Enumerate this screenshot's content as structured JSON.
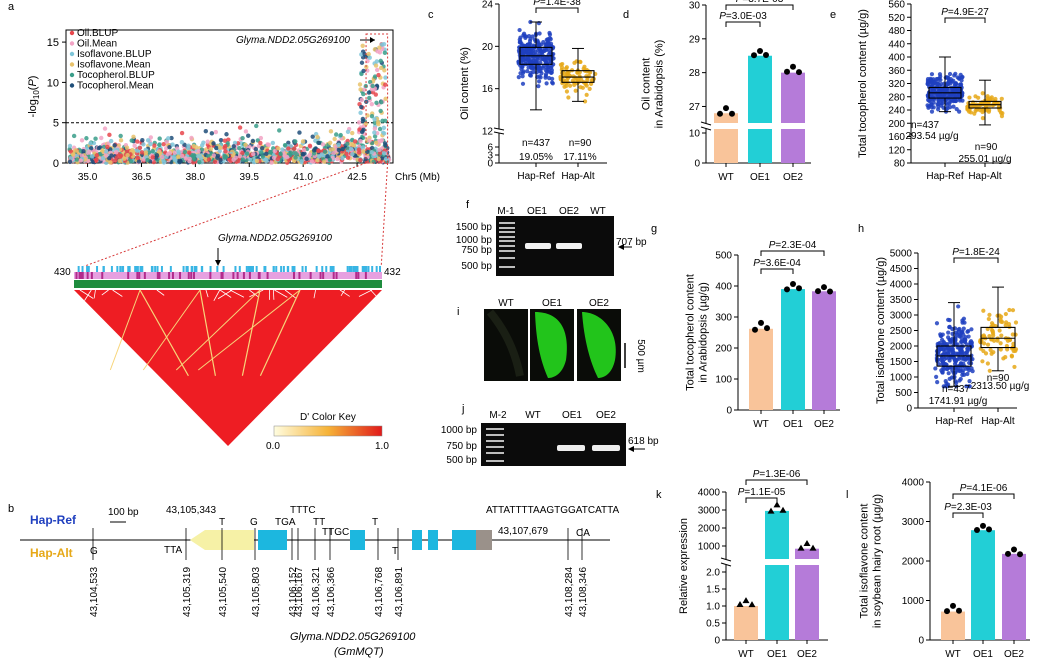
{
  "panel_letters": [
    "a",
    "b",
    "c",
    "d",
    "e",
    "f",
    "g",
    "h",
    "i",
    "j",
    "k",
    "l"
  ],
  "chart_data": [
    {
      "panel": "a",
      "type": "scatter",
      "ylabel": "-log10(P)",
      "xlabel": "Chr5 (Mb)",
      "xticks": [
        "35.0",
        "36.5",
        "38.0",
        "39.5",
        "41.0",
        "42.5"
      ],
      "yticks": [
        "0",
        "5",
        "10",
        "15"
      ],
      "xlim": [
        34.4,
        43.5
      ],
      "ylim": [
        0,
        16.5
      ],
      "threshold": 5,
      "legend": [
        "Oil.BLUP",
        "Oil.Mean",
        "Isoflavone.BLUP",
        "Isoflavone.Mean",
        "Tocopherol.BLUP",
        "Tocopherol.Mean"
      ],
      "colors": [
        "#e8474c",
        "#f2a3c4",
        "#7fc6d9",
        "#e8c26b",
        "#3a9e8a",
        "#1f4e79"
      ],
      "annotation": "Glyma.NDD2.05G269100",
      "peak": {
        "x": 43.1,
        "y": 15.3
      }
    },
    {
      "panel": "c",
      "type": "box",
      "ylabel": "Oil content (%)",
      "categories": [
        "Hap-Ref",
        "Hap-Alt"
      ],
      "yticks": [
        "0",
        "3",
        "6",
        "12",
        "16",
        "20",
        "24"
      ],
      "p": "P=1.4E-38",
      "n": [
        "n=437",
        "n=90"
      ],
      "means": [
        "19.05%",
        "17.11%"
      ],
      "boxes": [
        {
          "min": 14.0,
          "q1": 18.3,
          "median": 19.1,
          "q3": 19.9,
          "max": 22.3,
          "color": "#1f3fbf"
        },
        {
          "min": 14.8,
          "q1": 16.6,
          "median": 17.1,
          "q3": 17.7,
          "max": 19.8,
          "color": "#e6a817"
        }
      ]
    },
    {
      "panel": "d",
      "type": "bar",
      "ylabel": "Oil content\nin Arabidopsis (%)",
      "categories": [
        "WT",
        "OE1",
        "OE2"
      ],
      "values": [
        26.8,
        28.5,
        28.0
      ],
      "yticks": [
        "0",
        "10",
        "27",
        "28",
        "29",
        "30"
      ],
      "p": [
        "P=3.0E-03",
        "P=3.7E-03"
      ]
    },
    {
      "panel": "e",
      "type": "box",
      "ylabel": "Total tocopherol content (µg/g)",
      "categories": [
        "Hap-Ref",
        "Hap-Alt"
      ],
      "yticks": [
        "80",
        "120",
        "160",
        "200",
        "240",
        "280",
        "320",
        "360",
        "400",
        "440",
        "480",
        "520",
        "560"
      ],
      "p": "P=4.9E-27",
      "n": [
        "n=437",
        "n=90"
      ],
      "means": [
        "293.54 µg/g",
        "255.01 µg/g"
      ],
      "boxes": [
        {
          "min": 235,
          "q1": 276,
          "median": 292,
          "q3": 308,
          "max": 400,
          "color": "#1f3fbf"
        },
        {
          "min": 195,
          "q1": 246,
          "median": 256,
          "q3": 266,
          "max": 330,
          "color": "#e6a817"
        }
      ]
    },
    {
      "panel": "g",
      "type": "bar",
      "ylabel": "Total tocopherol content\nin Arabidopsis (µg/g)",
      "categories": [
        "WT",
        "OE1",
        "OE2"
      ],
      "values": [
        262,
        390,
        383
      ],
      "yticks": [
        "0",
        "100",
        "200",
        "300",
        "400",
        "500"
      ],
      "ylim": [
        0,
        500
      ],
      "p": [
        "P=3.6E-04",
        "P=2.3E-04"
      ]
    },
    {
      "panel": "h",
      "type": "box",
      "ylabel": "Total isoflavone content (µg/g)",
      "categories": [
        "Hap-Ref",
        "Hap-Alt"
      ],
      "yticks": [
        "0",
        "500",
        "1000",
        "1500",
        "2000",
        "2500",
        "3000",
        "3500",
        "4000",
        "4500",
        "5000"
      ],
      "p": "P=1.8E-24",
      "n": [
        "n=437",
        "n=90"
      ],
      "means": [
        "1741.91 µg/g",
        "2313.50 µg/g"
      ],
      "boxes": [
        {
          "min": 700,
          "q1": 1350,
          "median": 1680,
          "q3": 2000,
          "max": 3400,
          "color": "#1f3fbf"
        },
        {
          "min": 1200,
          "q1": 1950,
          "median": 2250,
          "q3": 2600,
          "max": 3900,
          "color": "#e6a817"
        }
      ]
    },
    {
      "panel": "k",
      "type": "bar",
      "ylabel": "Relative expression",
      "categories": [
        "WT",
        "OE1",
        "OE2"
      ],
      "values": [
        1.0,
        2950,
        850
      ],
      "yticks": [
        "0",
        "0.5",
        "1.0",
        "1.5",
        "2.0",
        "1000",
        "2000",
        "3000",
        "4000"
      ],
      "p": [
        "P=1.1E-05",
        "P=1.3E-06"
      ]
    },
    {
      "panel": "l",
      "type": "bar",
      "ylabel": "Total isoflavone content\nin soybean hairy root (µg/g)",
      "categories": [
        "WT",
        "OE1",
        "OE2"
      ],
      "values": [
        720,
        2780,
        2180
      ],
      "yticks": [
        "0",
        "1000",
        "2000",
        "3000",
        "4000"
      ],
      "ylim": [
        0,
        4000
      ],
      "p": [
        "P=2.3E-03",
        "P=4.1E-06"
      ]
    }
  ],
  "ld": {
    "left": "430",
    "right": "432",
    "gene": "Glyma.NDD2.05G269100",
    "key_title": "D' Color Key",
    "key_min": "0.0",
    "key_max": "1.0"
  },
  "gel_f": {
    "lanes": [
      "M-1",
      "OE1",
      "OE2",
      "WT"
    ],
    "ladder": [
      "1500 bp",
      "1000 bp",
      "750 bp",
      "500 bp"
    ],
    "band": "707 bp"
  },
  "gel_j": {
    "lanes": [
      "M-2",
      "WT",
      "OE1",
      "OE2"
    ],
    "ladder": [
      "1000 bp",
      "750 bp",
      "500 bp"
    ],
    "band": "618 bp"
  },
  "fluor_i": {
    "labels": [
      "WT",
      "OE1",
      "OE2"
    ],
    "scale": "500 µm"
  },
  "gene_b": {
    "hapref": "Hap-Ref",
    "hapalt": "Hap-Alt",
    "scale": "100 bp",
    "gene": "Glyma.NDD2.05G269100",
    "alias": "(GmMQT)",
    "top_labels": [
      "43,105,343",
      "T",
      "G",
      "TGA",
      "TTTC",
      "TT",
      "TTGC",
      "T",
      "ATTATTTTAAGTGGATCATTA",
      "43,107,679"
    ],
    "bottom_labels": [
      "G",
      "TTA",
      "T",
      "CA"
    ],
    "positions": [
      "43,104,533",
      "43,105,319",
      "43,105,540",
      "43,105,803",
      "43,106,152",
      "43,106,167",
      "43,106,321",
      "43,106,366",
      "43,106,768",
      "43,106,891",
      "43,108,284",
      "43,108,346"
    ]
  },
  "colors": {
    "wt": "#f9c49a",
    "oe1": "#22cfd6",
    "oe2": "#b57bd9",
    "ref": "#1f3fbf",
    "alt": "#e6a817",
    "ld": "#ee1d23"
  }
}
